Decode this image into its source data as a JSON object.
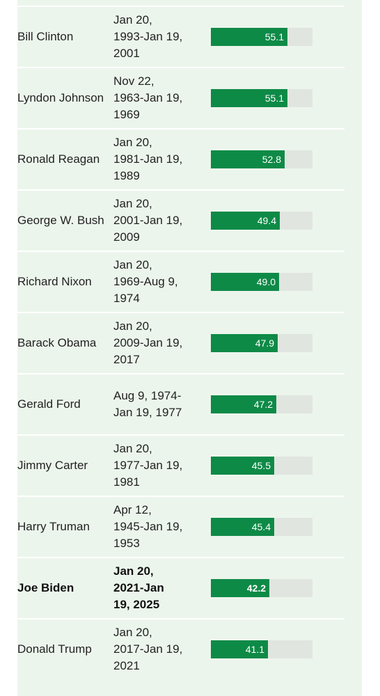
{
  "chart_data": {
    "type": "bar",
    "orientation": "horizontal",
    "xlim": [
      0,
      73
    ],
    "rows": [
      {
        "president": "Bill Clinton",
        "term": "Jan 20, 1993-Jan 19, 2001",
        "value": 55.1,
        "highlight": false
      },
      {
        "president": "Lyndon Johnson",
        "term": "Nov 22, 1963-Jan 19, 1969",
        "value": 55.1,
        "highlight": false
      },
      {
        "president": "Ronald Reagan",
        "term": "Jan 20, 1981-Jan 19, 1989",
        "value": 52.8,
        "highlight": false
      },
      {
        "president": "George W. Bush",
        "term": "Jan 20, 2001-Jan 19, 2009",
        "value": 49.4,
        "highlight": false
      },
      {
        "president": "Richard Nixon",
        "term": "Jan 20, 1969-Aug 9, 1974",
        "value": 49.0,
        "highlight": false
      },
      {
        "president": "Barack Obama",
        "term": "Jan 20, 2009-Jan 19, 2017",
        "value": 47.9,
        "highlight": false
      },
      {
        "president": "Gerald Ford",
        "term": "Aug 9, 1974-Jan 19, 1977",
        "value": 47.2,
        "highlight": false
      },
      {
        "president": "Jimmy Carter",
        "term": "Jan 20, 1977-Jan 19, 1981",
        "value": 45.5,
        "highlight": false
      },
      {
        "president": "Harry Truman",
        "term": "Apr 12, 1945-Jan 19, 1953",
        "value": 45.4,
        "highlight": false
      },
      {
        "president": "Joe Biden",
        "term": "Jan 20, 2021-Jan 19, 2025",
        "value": 42.2,
        "highlight": true
      },
      {
        "president": "Donald Trump",
        "term": "Jan 20, 2017-Jan 19, 2021",
        "value": 41.1,
        "highlight": false
      }
    ]
  },
  "colors": {
    "panel_bg": "#ecf5ec",
    "bar_fill": "#0e8a47",
    "bar_track": "#e0e5e0",
    "row_divider": "#ffffff",
    "bar_label": "#ffffff"
  }
}
